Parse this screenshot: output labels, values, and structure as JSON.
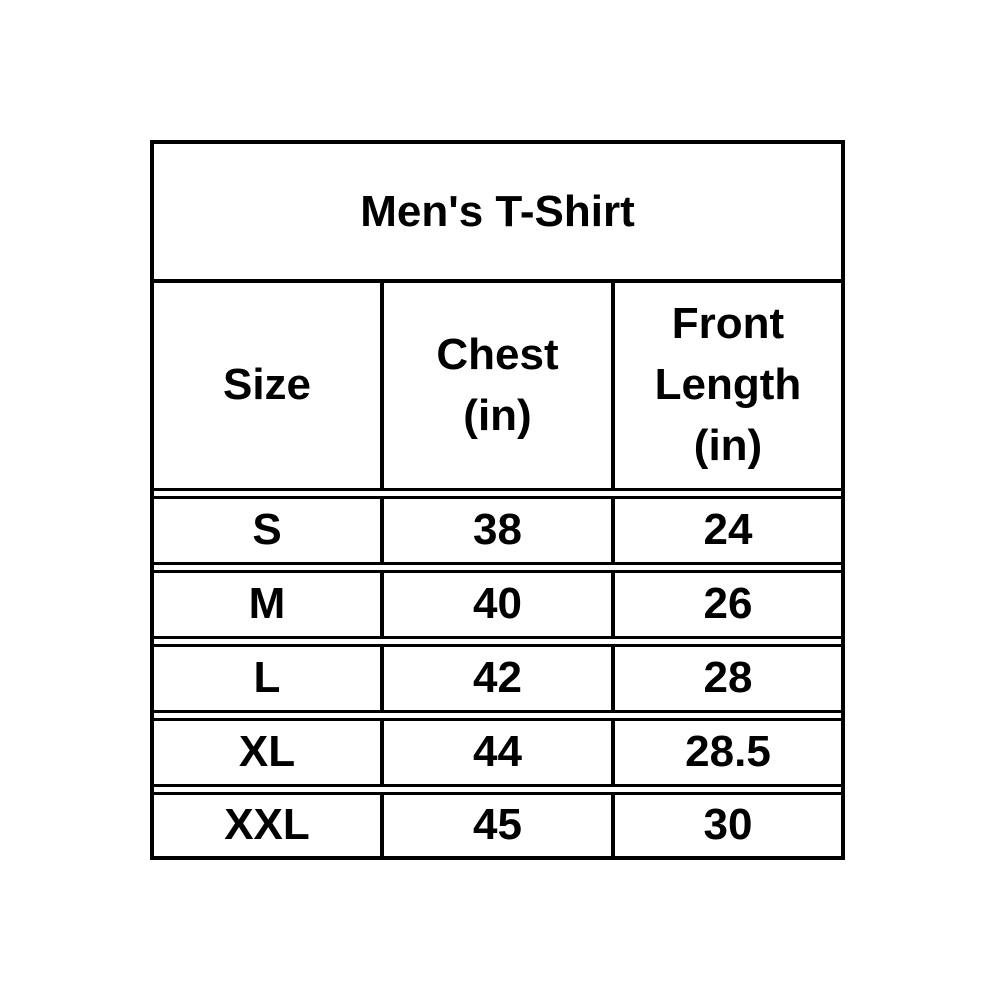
{
  "table": {
    "title": "Men's T-Shirt",
    "columns": [
      {
        "label": "Size",
        "lines": [
          "Size"
        ]
      },
      {
        "label": "Chest (in)",
        "lines": [
          "Chest",
          "(in)"
        ]
      },
      {
        "label": "Front Length (in)",
        "lines": [
          "Front",
          "Length",
          "(in)"
        ]
      }
    ],
    "rows": [
      [
        "S",
        "38",
        "24"
      ],
      [
        "M",
        "40",
        "26"
      ],
      [
        "L",
        "42",
        "28"
      ],
      [
        "XL",
        "44",
        "28.5"
      ],
      [
        "XXL",
        "45",
        "30"
      ]
    ]
  },
  "chart_data": {
    "type": "table",
    "title": "Men's T-Shirt",
    "columns": [
      "Size",
      "Chest (in)",
      "Front Length (in)"
    ],
    "rows": [
      [
        "S",
        38,
        24
      ],
      [
        "M",
        40,
        26
      ],
      [
        "L",
        42,
        28
      ],
      [
        "XL",
        44,
        28.5
      ],
      [
        "XXL",
        45,
        30
      ]
    ]
  },
  "colors": {
    "border": "#000000",
    "text": "#000000",
    "background": "#ffffff"
  }
}
